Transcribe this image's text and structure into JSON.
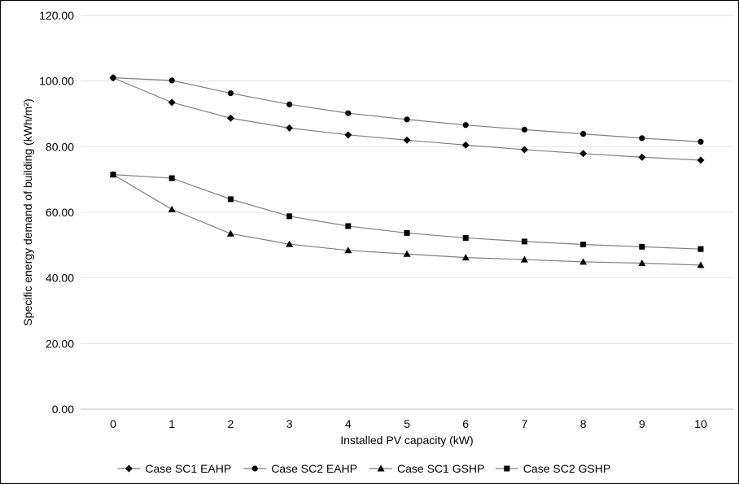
{
  "chart_data": {
    "type": "line",
    "title": "",
    "xlabel": "Installed PV capacity (kW)",
    "ylabel": "Specific energy demand of building  (kWh/m²)",
    "x": [
      0,
      1,
      2,
      3,
      4,
      5,
      6,
      7,
      8,
      9,
      10
    ],
    "x_tick_labels": [
      "0",
      "1",
      "2",
      "3",
      "4",
      "5",
      "6",
      "7",
      "8",
      "9",
      "10"
    ],
    "ylim": [
      0,
      120
    ],
    "y_ticks": [
      0,
      20,
      40,
      60,
      80,
      100,
      120
    ],
    "y_tick_labels": [
      "0.00",
      "20.00",
      "40.00",
      "60.00",
      "80.00",
      "100.00",
      "120.00"
    ],
    "grid": "horizontal",
    "legend_position": "bottom",
    "series": [
      {
        "name": "Case SC1 EAHP",
        "marker": "diamond",
        "values": [
          101.0,
          93.5,
          88.7,
          85.7,
          83.6,
          82.0,
          80.5,
          79.1,
          77.9,
          76.8,
          75.9
        ]
      },
      {
        "name": "Case SC2 EAHP",
        "marker": "circle",
        "values": [
          101.0,
          100.2,
          96.3,
          92.9,
          90.2,
          88.3,
          86.6,
          85.2,
          83.9,
          82.6,
          81.5
        ]
      },
      {
        "name": "Case SC1 GSHP",
        "marker": "triangle",
        "values": [
          71.5,
          60.9,
          53.5,
          50.3,
          48.4,
          47.3,
          46.2,
          45.6,
          44.9,
          44.5,
          43.9
        ]
      },
      {
        "name": "Case SC2 GSHP",
        "marker": "square",
        "values": [
          71.5,
          70.4,
          64.0,
          58.8,
          55.8,
          53.7,
          52.2,
          51.1,
          50.2,
          49.5,
          48.8
        ]
      }
    ],
    "colors": {
      "line": "#7f7f7f",
      "marker": "#000000",
      "grid": "#e3e3e3",
      "axis": "#bfbfbf"
    }
  }
}
